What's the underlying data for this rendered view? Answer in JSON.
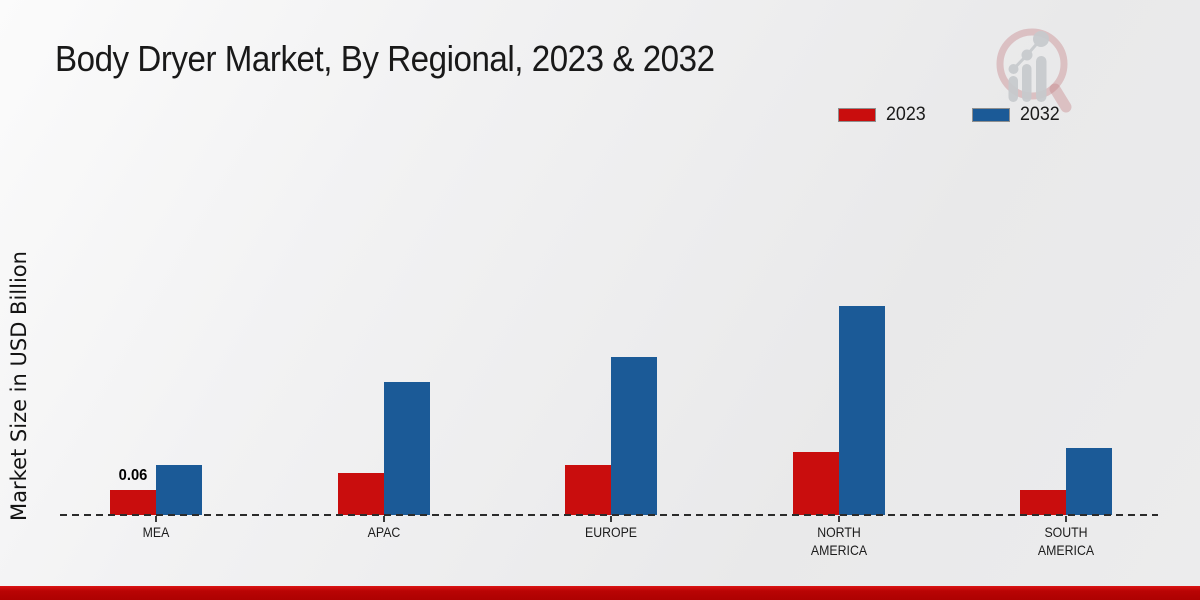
{
  "title": "Body Dryer Market, By Regional, 2023 & 2032",
  "ylabel": "Market Size in USD Billion",
  "legend": {
    "position": "top-right",
    "items": [
      {
        "label": "2023",
        "color": "#c90d0d"
      },
      {
        "label": "2032",
        "color": "#1b5a97"
      }
    ]
  },
  "watermark_icon": "market-research-magnifier-logo",
  "footer": {
    "bar_color": "#b50404"
  },
  "chart_data": {
    "type": "bar",
    "title": "Body Dryer Market, By Regional, 2023 & 2032",
    "ylabel": "Market Size in USD Billion",
    "xlabel": "",
    "categories": [
      "MEA",
      "APAC",
      "EUROPE",
      "NORTH AMERICA",
      "SOUTH AMERICA"
    ],
    "series": [
      {
        "name": "2023",
        "color": "#c90d0d",
        "values": [
          0.06,
          0.1,
          0.12,
          0.15,
          0.06
        ]
      },
      {
        "name": "2032",
        "color": "#1b5a97",
        "values": [
          0.12,
          0.32,
          0.38,
          0.5,
          0.16
        ]
      }
    ],
    "data_labels": [
      {
        "series": "2023",
        "category": "MEA",
        "text": "0.06"
      }
    ],
    "ylim": [
      0,
      0.55
    ],
    "grid": false,
    "y_axis_ticks_visible": false,
    "legend_position": "top-right",
    "baseline_style": "dashed"
  }
}
